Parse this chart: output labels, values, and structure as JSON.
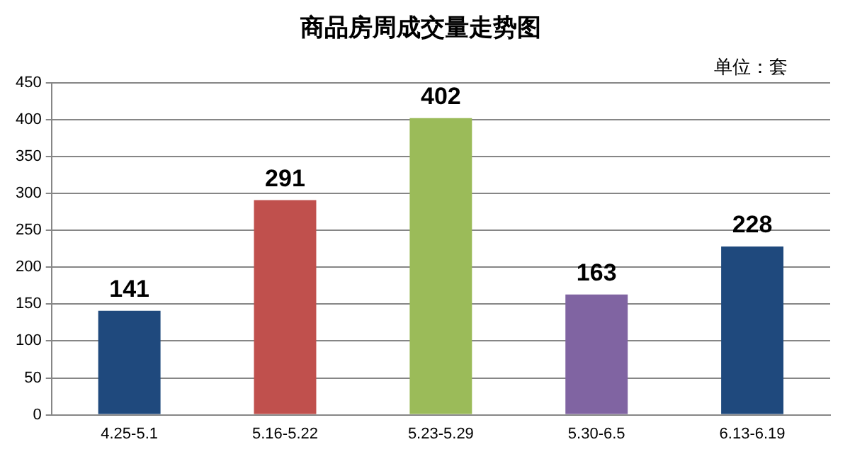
{
  "chart_data": {
    "type": "bar",
    "title": "商品房周成交量走势图",
    "annotations": [
      "单位：套"
    ],
    "categories": [
      "4.25-5.1",
      "5.16-5.22",
      "5.23-5.29",
      "5.30-6.5",
      "6.13-6.19"
    ],
    "values": [
      141,
      291,
      402,
      163,
      228
    ],
    "colors": [
      "#1f497d",
      "#c0504d",
      "#9bbb59",
      "#8064a2",
      "#1f497d"
    ],
    "ylim": [
      0,
      450
    ],
    "yticks": [
      0,
      50,
      100,
      150,
      200,
      250,
      300,
      350,
      400,
      450
    ],
    "grid": "y",
    "data_labels": true
  }
}
